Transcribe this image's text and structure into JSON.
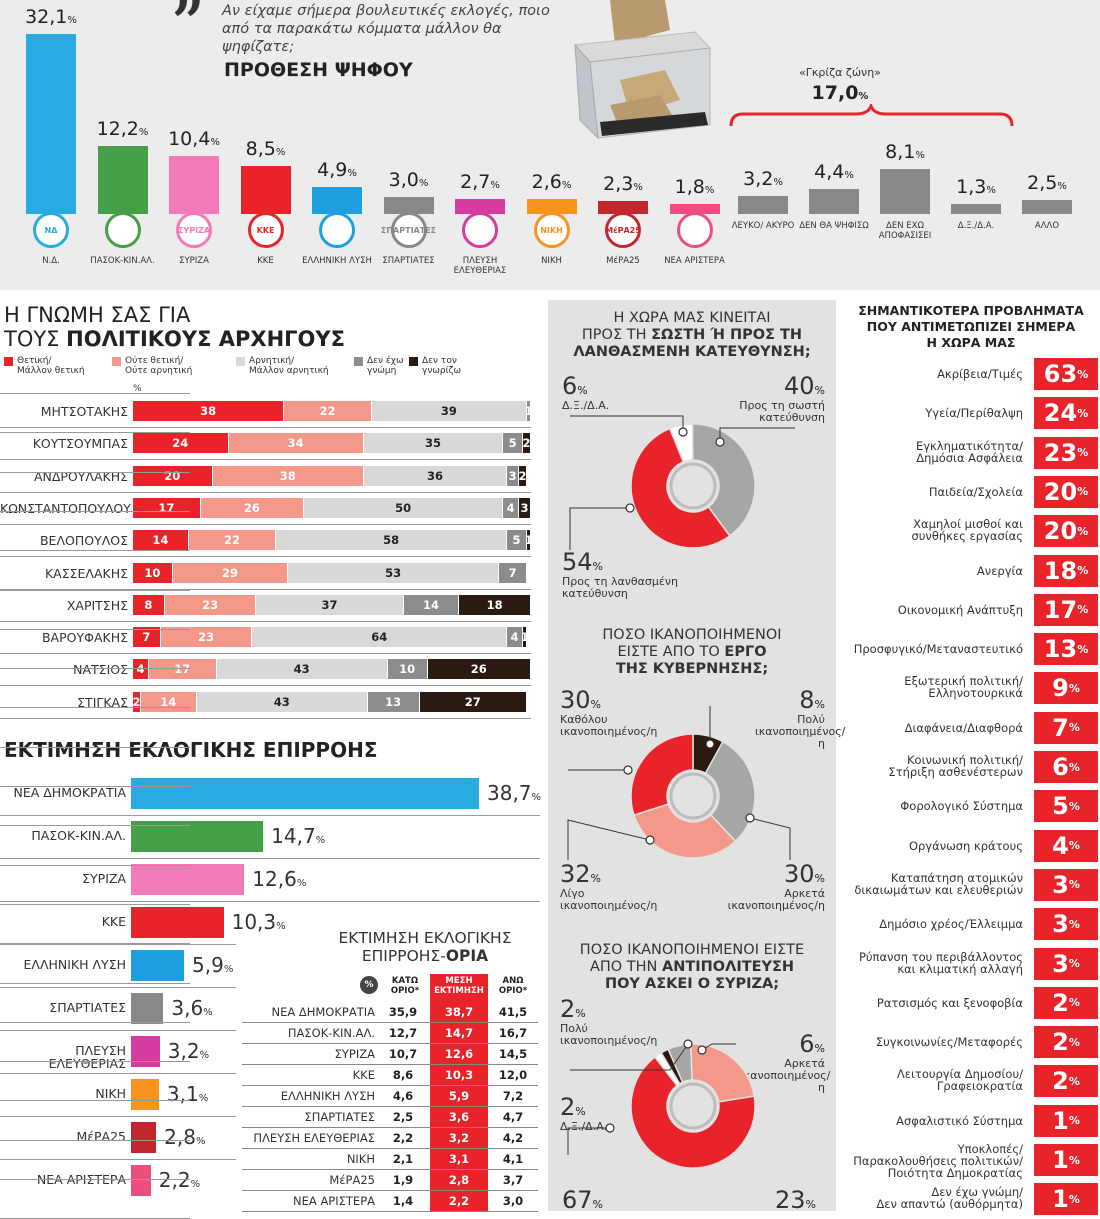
{
  "intention": {
    "question": "Αν είχαμε σήμερα βουλευτικές εκλογές, ποιο από τα παρακάτω κόμματα μάλλον θα ψηφίζατε;",
    "title": "ΠΡΟΘΕΣΗ ΨΗΦΟΥ",
    "grey_zone_label": "«Γκρίζα ζώνη»",
    "grey_zone_value": "17,0",
    "pct": "%"
  },
  "leaders": {
    "title_line1": "Η ΓΝΩΜΗ ΣΑΣ ΓΙΑ",
    "title_line2a": "ΤΟΥΣ ",
    "title_line2b": "ΠΟΛΙΤΙΚΟΥΣ ΑΡΧΗΓΟΥΣ",
    "pct_mark": "%",
    "legend": [
      {
        "line1": "Θετική/",
        "line2": "Μάλλον θετική",
        "color": "#e8232a"
      },
      {
        "line1": "Ούτε θετική/",
        "line2": "Ούτε αρνητική",
        "color": "#f4988a"
      },
      {
        "line1": "Αρνητική/",
        "line2": "Μάλλον αρνητική",
        "color": "#d8d8d8"
      },
      {
        "line1": "Δεν έχω",
        "line2": "γνώμη",
        "color": "#8c8c8c"
      },
      {
        "line1": "Δεν τον",
        "line2": "γνωρίζω",
        "color": "#2b1a12"
      }
    ]
  },
  "influence": {
    "title": "ΕΚΤΙΜΗΣΗ ΕΚΛΟΓΙΚΗΣ ΕΠΙΡΡΟΗΣ"
  },
  "limits": {
    "title_line1": "ΕΚΤΙΜΗΣΗ ΕΚΛΟΓΙΚΗΣ",
    "title_line2a": "ΕΠΙΡΡΟΗΣ-",
    "title_line2b": "ΟΡΙΑ",
    "pct_mark": "%",
    "col_low": "ΚΑΤΩ ΟΡΙΟ*",
    "col_mid": "ΜΕΣΗ ΕΚΤΙΜΗΣΗ",
    "col_high": "ΑΝΩ ΟΡΙΟ*"
  },
  "direction": {
    "title_l1": "Η ΧΩΡΑ ΜΑΣ ΚΙΝΕΙΤΑΙ",
    "title_l2a": "ΠΡΟΣ ΤΗ ",
    "title_l2b": "ΣΩΣΤΗ Ή ΠΡΟΣ ΤΗ",
    "title_l3": "ΛΑΝΘΑΣΜΕΝΗ ΚΑΤΕΥΘΥΝΣΗ;",
    "a_val": "6",
    "a_cap1": "Δ.Ξ./Δ.Α.",
    "a_cap2": "",
    "b_val": "40",
    "b_cap1": "Προς τη σωστή",
    "b_cap2": "κατεύθυνση",
    "c_val": "54",
    "c_cap1": "Προς τη λανθασμένη",
    "c_cap2": "κατεύθυνση"
  },
  "government": {
    "title_l1": "ΠΟΣΟ ΙΚΑΝΟΠΟΙΗΜΕΝΟΙ",
    "title_l2a": "ΕΙΣΤΕ ΑΠΟ ΤΟ ",
    "title_l2b": "ΕΡΓΟ",
    "title_l3": "ΤΗΣ ΚΥΒΕΡΝΗΣΗΣ;",
    "a_val": "30",
    "a_cap1": "Καθόλου",
    "a_cap2": "ικανοποιημένος/η",
    "b_val": "8",
    "b_cap1": "Πολύ",
    "b_cap2": "ικανοποιημένος/η",
    "c_val": "32",
    "c_cap1": "Λίγο",
    "c_cap2": "ικανοποιημένος/η",
    "d_val": "30",
    "d_cap1": "Αρκετά",
    "d_cap2": "ικανοποιημένος/η"
  },
  "opposition": {
    "title_l1": "ΠΟΣΟ ΙΚΑΝΟΠΟΙΗΜΕΝΟΙ ΕΙΣΤΕ",
    "title_l2a": "ΑΠΟ ΤΗΝ ",
    "title_l2b": "ΑΝΤΙΠΟΛΙΤΕΥΣΗ",
    "title_l3": "ΠΟΥ ΑΣΚΕΙ Ο ΣΥΡΙΖΑ;",
    "a_val": "2",
    "a_cap1": "Πολύ",
    "a_cap2": "ικανοποιημένος/η",
    "b_val": "6",
    "b_cap1": "Αρκετά",
    "b_cap2": "ικανοποιημένος/η",
    "c_val": "2",
    "c_cap1": "Δ.Ξ./Δ.Α.",
    "c_cap2": "",
    "d_val": "67",
    "e_val": "23"
  },
  "problems": {
    "title_l1": "ΣΗΜΑΝΤΙΚΟΤΕΡΑ ΠΡΟΒΛΗΜΑΤΑ",
    "title_l2": "ΠΟΥ ΑΝΤΙΜΕΤΩΠΙΖΕΙ ΣΗΜΕΡΑ",
    "title_l3": "Η ΧΩΡΑ ΜΑΣ"
  },
  "chart_data": [
    {
      "type": "bar",
      "title": "ΠΡΟΘΕΣΗ ΨΗΦΟΥ",
      "categories": [
        "Ν.Δ.",
        "ΠΑΣΟΚ-ΚΙΝ.ΑΛ.",
        "ΣΥΡΙΖΑ",
        "ΚΚΕ",
        "ΕΛΛΗΝΙΚΗ ΛΥΣΗ",
        "ΣΠΑΡΤΙΑΤΕΣ",
        "ΠΛΕΥΣΗ ΕΛΕΥΘΕΡΙΑΣ",
        "ΝΙΚΗ",
        "ΜέΡΑ25",
        "ΝΕΑ ΑΡΙΣΤΕΡΑ",
        "ΛΕΥΚΟ/ ΑΚΥΡΟ",
        "ΔΕΝ ΘΑ ΨΗΦΙΣΩ",
        "ΔΕΝ ΕΧΩ ΑΠΟΦΑΣΙΣΕΙ",
        "Δ.Ξ./Δ.Α.",
        "ΑΛΛΟ"
      ],
      "values": [
        32.1,
        12.2,
        10.4,
        8.5,
        4.9,
        3.0,
        2.7,
        2.6,
        2.3,
        1.8,
        3.2,
        4.4,
        8.1,
        1.3,
        2.5
      ],
      "labels": [
        "32,1",
        "12,2",
        "10,4",
        "8,5",
        "4,9",
        "3,0",
        "2,7",
        "2,6",
        "2,3",
        "1,8",
        "3,2",
        "4,4",
        "8,1",
        "1,3",
        "2,5"
      ],
      "logos": [
        "ΝΔ",
        "",
        "ΣΥΡΙΖΑ",
        "ΚΚΕ",
        "",
        "ΣΠΑΡΤΙΑΤΕΣ",
        "",
        "ΝΙΚΗ",
        "ΜέΡΑ25",
        "",
        "",
        "",
        "",
        "",
        ""
      ],
      "colors": [
        "#29abe2",
        "#43a047",
        "#f47ab9",
        "#e8232a",
        "#1e9fe0",
        "#888888",
        "#d63c9f",
        "#f7941d",
        "#c1272d",
        "#ec4f7d",
        "#888888",
        "#888888",
        "#888888",
        "#888888",
        "#888888"
      ]
    },
    {
      "type": "bar",
      "stacked": true,
      "orientation": "horizontal",
      "categories": [
        "ΜΗΤΣΟΤΑΚΗΣ",
        "ΚΟΥΤΣΟΥΜΠΑΣ",
        "ΑΝΔΡΟΥΛΑΚΗΣ",
        "ΚΩΝΣΤΑΝΤΟΠΟΥΛΟΥ",
        "ΒΕΛΟΠΟΥΛΟΣ",
        "ΚΑΣΣΕΛΑΚΗΣ",
        "ΧΑΡΙΤΣΗΣ",
        "ΒΑΡΟΥΦΑΚΗΣ",
        "ΝΑΤΣΙΟΣ",
        "ΣΤΙΓΚΑΣ"
      ],
      "series": [
        {
          "name": "Θετική/Μάλλον θετική",
          "values": [
            38,
            24,
            20,
            17,
            14,
            10,
            8,
            7,
            4,
            2
          ]
        },
        {
          "name": "Ούτε θετική/Ούτε αρνητική",
          "values": [
            22,
            34,
            38,
            26,
            22,
            29,
            23,
            23,
            17,
            14
          ]
        },
        {
          "name": "Αρνητική/Μάλλον αρνητική",
          "values": [
            39,
            35,
            36,
            50,
            58,
            53,
            37,
            64,
            43,
            43
          ]
        },
        {
          "name": "Δεν έχω γνώμη",
          "values": [
            1,
            5,
            3,
            4,
            5,
            7,
            14,
            4,
            10,
            13
          ]
        },
        {
          "name": "Δεν τον γνωρίζω",
          "values": [
            0,
            2,
            2,
            3,
            1,
            0,
            18,
            1,
            26,
            27
          ]
        }
      ]
    },
    {
      "type": "bar",
      "orientation": "horizontal",
      "title": "ΕΚΤΙΜΗΣΗ ΕΚΛΟΓΙΚΗΣ ΕΠΙΡΡΟΗΣ",
      "categories": [
        "ΝΕΑ ΔΗΜΟΚΡΑΤΙΑ",
        "ΠΑΣΟΚ-ΚΙΝ.ΑΛ.",
        "ΣΥΡΙΖΑ",
        "ΚΚΕ",
        "ΕΛΛΗΝΙΚΗ ΛΥΣΗ",
        "ΣΠΑΡΤΙΑΤΕΣ",
        "ΠΛΕΥΣΗ ΕΛΕΥΘΕΡΙΑΣ",
        "ΝΙΚΗ",
        "ΜέΡΑ25",
        "ΝΕΑ ΑΡΙΣΤΕΡΑ"
      ],
      "values": [
        38.7,
        14.7,
        12.6,
        10.3,
        5.9,
        3.6,
        3.2,
        3.1,
        2.8,
        2.2
      ],
      "labels": [
        "38,7",
        "14,7",
        "12,6",
        "10,3",
        "5,9",
        "3,6",
        "3,2",
        "3,1",
        "2,8",
        "2,2"
      ],
      "colors": [
        "#29abe2",
        "#43a047",
        "#f47ab9",
        "#e8232a",
        "#1e9fe0",
        "#888888",
        "#d63c9f",
        "#f7941d",
        "#c1272d",
        "#ec4f7d"
      ]
    },
    {
      "type": "table",
      "title": "ΕΚΤΙΜΗΣΗ ΕΚΛΟΓΙΚΗΣ ΕΠΙΡΡΟΗΣ-ΟΡΙΑ",
      "columns": [
        "ΚΑΤΩ ΟΡΙΟ*",
        "ΜΕΣΗ ΕΚΤΙΜΗΣΗ",
        "ΑΝΩ ΟΡΙΟ*"
      ],
      "rows": [
        {
          "name": "ΝΕΑ ΔΗΜΟΚΡΑΤΙΑ",
          "low": "35,9",
          "mid": "38,7",
          "high": "41,5"
        },
        {
          "name": "ΠΑΣΟΚ-ΚΙΝ.ΑΛ.",
          "low": "12,7",
          "mid": "14,7",
          "high": "16,7"
        },
        {
          "name": "ΣΥΡΙΖΑ",
          "low": "10,7",
          "mid": "12,6",
          "high": "14,5"
        },
        {
          "name": "ΚΚΕ",
          "low": "8,6",
          "mid": "10,3",
          "high": "12,0"
        },
        {
          "name": "ΕΛΛΗΝΙΚΗ ΛΥΣΗ",
          "low": "4,6",
          "mid": "5,9",
          "high": "7,2"
        },
        {
          "name": "ΣΠΑΡΤΙΑΤΕΣ",
          "low": "2,5",
          "mid": "3,6",
          "high": "4,7"
        },
        {
          "name": "ΠΛΕΥΣΗ ΕΛΕΥΘΕΡΙΑΣ",
          "low": "2,2",
          "mid": "3,2",
          "high": "4,2"
        },
        {
          "name": "ΝΙΚΗ",
          "low": "2,1",
          "mid": "3,1",
          "high": "4,1"
        },
        {
          "name": "ΜέΡΑ25",
          "low": "1,9",
          "mid": "2,8",
          "high": "3,7"
        },
        {
          "name": "ΝΕΑ ΑΡΙΣΤΕΡΑ",
          "low": "1,4",
          "mid": "2,2",
          "high": "3,0"
        }
      ]
    },
    {
      "type": "pie",
      "title": "Η ΧΩΡΑ ΜΑΣ ΚΙΝΕΙΤΑΙ ΠΡΟΣ ΤΗ ΣΩΣΤΗ Ή ΠΡΟΣ ΤΗ ΛΑΝΘΑΣΜΕΝΗ ΚΑΤΕΥΘΥΝΣΗ;",
      "categories": [
        "Δ.Ξ./Δ.Α.",
        "Προς τη σωστή κατεύθυνση",
        "Προς τη λανθασμένη κατεύθυνση"
      ],
      "values": [
        6,
        40,
        54
      ],
      "colors": [
        "#ffffff",
        "#a6a6a6",
        "#e8232a"
      ]
    },
    {
      "type": "pie",
      "title": "ΠΟΣΟ ΙΚΑΝΟΠΟΙΗΜΕΝΟΙ ΕΙΣΤΕ ΑΠΟ ΤΟ ΕΡΓΟ ΤΗΣ ΚΥΒΕΡΝΗΣΗΣ;",
      "categories": [
        "Πολύ ικανοποιημένος/η",
        "Αρκετά ικανοποιημένος/η",
        "Λίγο ικανοποιημένος/η",
        "Καθόλου ικανοποιημένος/η"
      ],
      "values": [
        8,
        30,
        32,
        30
      ],
      "colors": [
        "#2b1a12",
        "#a6a6a6",
        "#f4988a",
        "#e8232a"
      ]
    },
    {
      "type": "pie",
      "title": "ΠΟΣΟ ΙΚΑΝΟΠΟΙΗΜΕΝΟΙ ΕΙΣΤΕ ΑΠΟ ΤΗΝ ΑΝΤΙΠΟΛΙΤΕΥΣΗ ΠΟΥ ΑΣΚΕΙ Ο ΣΥΡΙΖΑ;",
      "categories": [
        "Δ.Ξ./Δ.Α.",
        "Πολύ ικανοποιημένος/η",
        "Αρκετά ικανοποιημένος/η",
        "",
        ""
      ],
      "values": [
        2,
        2,
        6,
        23,
        67
      ],
      "colors": [
        "#ffffff",
        "#2b1a12",
        "#a6a6a6",
        "#f4988a",
        "#e8232a"
      ]
    },
    {
      "type": "bar",
      "orientation": "horizontal",
      "title": "ΣΗΜΑΝΤΙΚΟΤΕΡΑ ΠΡΟΒΛΗΜΑΤΑ ΠΟΥ ΑΝΤΙΜΕΤΩΠΙΖΕΙ ΣΗΜΕΡΑ Η ΧΩΡΑ ΜΑΣ",
      "rows": [
        {
          "l1": "Ακρίβεια/Τιμές",
          "l2": "",
          "value": 63
        },
        {
          "l1": "Υγεία/Περίθαλψη",
          "l2": "",
          "value": 24
        },
        {
          "l1": "Εγκληματικότητα/",
          "l2": "Δημόσια Ασφάλεια",
          "value": 23
        },
        {
          "l1": "Παιδεία/Σχολεία",
          "l2": "",
          "value": 20
        },
        {
          "l1": "Χαμηλοί μισθοί και",
          "l2": "συνθήκες εργασίας",
          "value": 20
        },
        {
          "l1": "Ανεργία",
          "l2": "",
          "value": 18
        },
        {
          "l1": "Οικονομική Ανάπτυξη",
          "l2": "",
          "value": 17
        },
        {
          "l1": "Προσφυγικό/Μεταναστευτικό",
          "l2": "",
          "value": 13
        },
        {
          "l1": "Εξωτερική πολιτική/",
          "l2": "Ελληνοτουρκικά",
          "value": 9
        },
        {
          "l1": "Διαφάνεια/Διαφθορά",
          "l2": "",
          "value": 7
        },
        {
          "l1": "Κοινωνική πολιτική/",
          "l2": "Στήριξη ασθενέστερων",
          "value": 6
        },
        {
          "l1": "Φορολογικό Σύστημα",
          "l2": "",
          "value": 5
        },
        {
          "l1": "Οργάνωση κράτους",
          "l2": "",
          "value": 4
        },
        {
          "l1": "Καταπάτηση ατομικών",
          "l2": "δικαιωμάτων και ελευθεριών",
          "value": 3
        },
        {
          "l1": "Δημόσιο χρέος/Έλλειμμα",
          "l2": "",
          "value": 3
        },
        {
          "l1": "Ρύπανση του περιβάλλοντος",
          "l2": "και κλιματική αλλαγή",
          "value": 3
        },
        {
          "l1": "Ρατσισμός και ξενοφοβία",
          "l2": "",
          "value": 2
        },
        {
          "l1": "Συγκοινωνίες/Μεταφορές",
          "l2": "",
          "value": 2
        },
        {
          "l1": "Λειτουργία Δημοσίου/",
          "l2": "Γραφειοκρατία",
          "value": 2
        },
        {
          "l1": "Ασφαλιστικό Σύστημα",
          "l2": "",
          "value": 1
        },
        {
          "l1": "Υποκλοπές/",
          "l2": "Παρακολουθήσεις πολιτικών/ Ποιότητα Δημοκρατίας",
          "value": 1
        },
        {
          "l1": "Δεν έχω γνώμη/",
          "l2": "Δεν απαντώ (αυθόρμητα)",
          "value": 1
        }
      ]
    }
  ]
}
